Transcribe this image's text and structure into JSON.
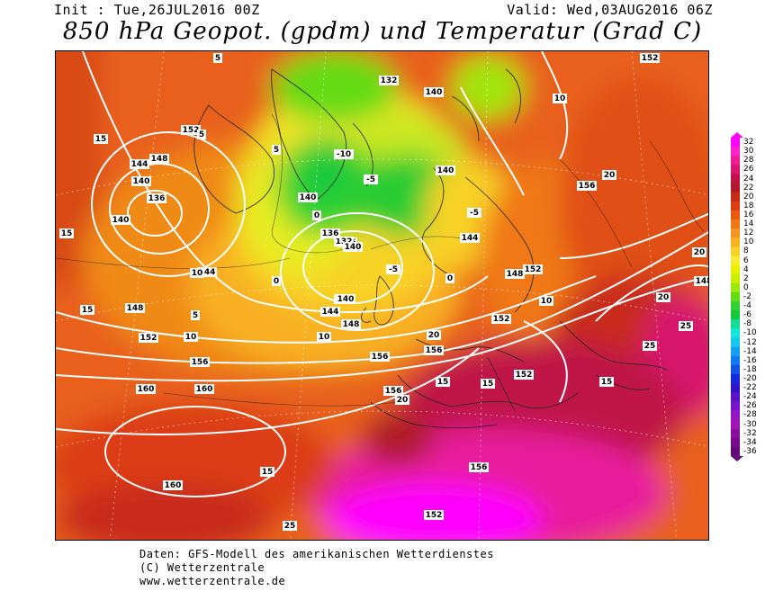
{
  "header": {
    "init": "Init : Tue,26JUL2016 00Z",
    "valid": "Valid: Wed,03AUG2016 06Z",
    "title": "850 hPa Geopot. (gpdm) und Temperatur (Grad C)"
  },
  "legend": {
    "values": [
      "32",
      "30",
      "28",
      "26",
      "24",
      "22",
      "20",
      "18",
      "16",
      "14",
      "12",
      "10",
      "8",
      "6",
      "4",
      "2",
      "0",
      "-2",
      "-4",
      "-6",
      "-8",
      "-10",
      "-12",
      "-14",
      "-16",
      "-18",
      "-20",
      "-22",
      "-24",
      "-26",
      "-28",
      "-30",
      "-32",
      "-34",
      "-36"
    ],
    "colors": [
      "#ff00ff",
      "#ff22cc",
      "#f01c96",
      "#d8166e",
      "#c01246",
      "#b01a28",
      "#c82a1a",
      "#dc3c12",
      "#e85a12",
      "#f07814",
      "#f59620",
      "#f8b420",
      "#f8d228",
      "#f8ec30",
      "#e8f000",
      "#c8f000",
      "#a0e60a",
      "#64dc14",
      "#32d232",
      "#14c83c",
      "#14dc96",
      "#14e6dc",
      "#14c8f0",
      "#14a0f0",
      "#1478f0",
      "#1450e6",
      "#1428dc",
      "#3214c8",
      "#5a14c8",
      "#7814c8",
      "#9614c8",
      "#a014b4",
      "#8c0ca0",
      "#780a8c",
      "#640a78"
    ]
  },
  "map_labels": {
    "geopotential": [
      "152",
      "148",
      "144",
      "140",
      "136",
      "140",
      "144",
      "148",
      "152",
      "156",
      "160",
      "160",
      "156",
      "152",
      "148",
      "144",
      "140",
      "136",
      "132",
      "140",
      "144",
      "148",
      "152",
      "156",
      "136",
      "132",
      "140",
      "140",
      "140",
      "144",
      "152",
      "156",
      "152",
      "156",
      "160",
      "156",
      "152",
      "148"
    ],
    "temperature": [
      "15",
      "15",
      "10",
      "5",
      "0",
      "-5",
      "-10",
      "-5",
      "0",
      "5",
      "10",
      "15",
      "20",
      "25",
      "20",
      "15",
      "10",
      "5",
      "0",
      "-5",
      "5",
      "10",
      "15",
      "20",
      "25",
      "20",
      "15",
      "10",
      "15",
      "20",
      "25"
    ]
  },
  "footer": {
    "line1": "Daten: GFS-Modell des amerikanischen Wetterdienstes",
    "line2": "(C) Wetterzentrale",
    "line3": "www.wetterzentrale.de"
  }
}
